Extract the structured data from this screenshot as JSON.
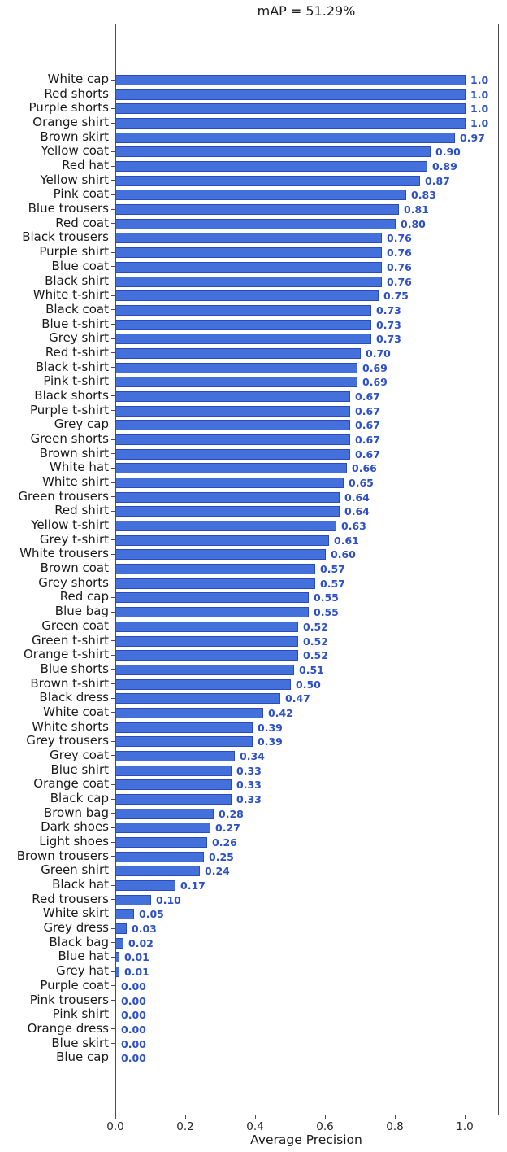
{
  "chart_data": {
    "type": "bar",
    "orientation": "horizontal",
    "title": "mAP = 51.29%",
    "xlabel": "Average Precision",
    "xlim": [
      0,
      1.093
    ],
    "xticks": [
      {
        "value": 0.0,
        "label": "0.0"
      },
      {
        "value": 0.2,
        "label": "0.2"
      },
      {
        "value": 0.4,
        "label": "0.4"
      },
      {
        "value": 0.6,
        "label": "0.6"
      },
      {
        "value": 0.8,
        "label": "0.8"
      },
      {
        "value": 1.0,
        "label": "1.0"
      }
    ],
    "grid": false,
    "legend": false,
    "bar_color": "#4470DB",
    "bar_edge_color": "#2a4abe",
    "value_label_color": "#2d50c8",
    "categories": [
      "White cap",
      "Red shorts",
      "Purple shorts",
      "Orange shirt",
      "Brown skirt",
      "Yellow coat",
      "Red hat",
      "Yellow shirt",
      "Pink coat",
      "Blue trousers",
      "Red coat",
      "Black trousers",
      "Purple shirt",
      "Blue coat",
      "Black shirt",
      "White t-shirt",
      "Black coat",
      "Blue t-shirt",
      "Grey shirt",
      "Red t-shirt",
      "Black t-shirt",
      "Pink t-shirt",
      "Black shorts",
      "Purple t-shirt",
      "Grey cap",
      "Green shorts",
      "Brown shirt",
      "White hat",
      "White shirt",
      "Green trousers",
      "Red shirt",
      "Yellow t-shirt",
      "Grey t-shirt",
      "White trousers",
      "Brown coat",
      "Grey shorts",
      "Red cap",
      "Blue bag",
      "Green coat",
      "Green t-shirt",
      "Orange t-shirt",
      "Blue shorts",
      "Brown t-shirt",
      "Black dress",
      "White coat",
      "White shorts",
      "Grey trousers",
      "Grey coat",
      "Blue shirt",
      "Orange coat",
      "Black cap",
      "Brown bag",
      "Dark shoes",
      "Light shoes",
      "Brown trousers",
      "Green shirt",
      "Black hat",
      "Red trousers",
      "White skirt",
      "Grey dress",
      "Black bag",
      "Blue hat",
      "Grey hat",
      "Purple coat",
      "Pink trousers",
      "Pink shirt",
      "Orange dress",
      "Blue skirt",
      "Blue cap"
    ],
    "values": [
      1.0,
      1.0,
      1.0,
      1.0,
      0.97,
      0.9,
      0.89,
      0.87,
      0.83,
      0.81,
      0.8,
      0.76,
      0.76,
      0.76,
      0.76,
      0.75,
      0.73,
      0.73,
      0.73,
      0.7,
      0.69,
      0.69,
      0.67,
      0.67,
      0.67,
      0.67,
      0.67,
      0.66,
      0.65,
      0.64,
      0.64,
      0.63,
      0.61,
      0.6,
      0.57,
      0.57,
      0.55,
      0.55,
      0.52,
      0.52,
      0.52,
      0.51,
      0.5,
      0.47,
      0.42,
      0.39,
      0.39,
      0.34,
      0.33,
      0.33,
      0.33,
      0.28,
      0.27,
      0.26,
      0.25,
      0.24,
      0.17,
      0.1,
      0.05,
      0.03,
      0.02,
      0.01,
      0.01,
      0.0,
      0.0,
      0.0,
      0.0,
      0.0,
      0.0
    ],
    "value_labels": [
      "1.0",
      "1.0",
      "1.0",
      "1.0",
      "0.97",
      "0.90",
      "0.89",
      "0.87",
      "0.83",
      "0.81",
      "0.80",
      "0.76",
      "0.76",
      "0.76",
      "0.76",
      "0.75",
      "0.73",
      "0.73",
      "0.73",
      "0.70",
      "0.69",
      "0.69",
      "0.67",
      "0.67",
      "0.67",
      "0.67",
      "0.67",
      "0.66",
      "0.65",
      "0.64",
      "0.64",
      "0.63",
      "0.61",
      "0.60",
      "0.57",
      "0.57",
      "0.55",
      "0.55",
      "0.52",
      "0.52",
      "0.52",
      "0.51",
      "0.50",
      "0.47",
      "0.42",
      "0.39",
      "0.39",
      "0.34",
      "0.33",
      "0.33",
      "0.33",
      "0.28",
      "0.27",
      "0.26",
      "0.25",
      "0.24",
      "0.17",
      "0.10",
      "0.05",
      "0.03",
      "0.02",
      "0.01",
      "0.01",
      "0.00",
      "0.00",
      "0.00",
      "0.00",
      "0.00",
      "0.00"
    ]
  }
}
